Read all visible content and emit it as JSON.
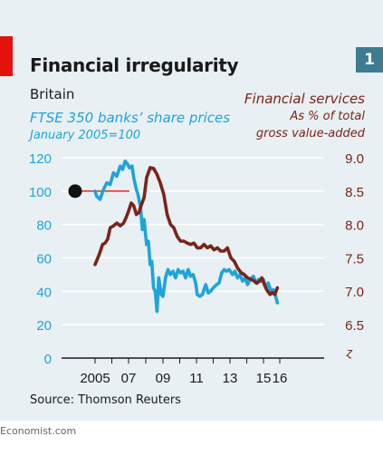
{
  "header": {
    "chart_number": "1",
    "title": "Financial irregularity",
    "subtitle": "Britain",
    "left_series_title": "FTSE 350 banks’ share prices",
    "left_series_subtitle": "January 2005=100",
    "right_series_title": "Financial services",
    "right_series_subtitle_1": "As % of total",
    "right_series_subtitle_2": "gross value-added"
  },
  "footer": {
    "source": "Source: Thomson Reuters",
    "credit": "Economist.com"
  },
  "colors": {
    "left_series": "#1fa3db",
    "right_series": "#7a2418",
    "highlight": "#e3120b",
    "background": "#e8f0f4"
  },
  "chart_data": {
    "type": "line",
    "x_tick_labels": [
      "2005",
      "07",
      "09",
      "11",
      "13",
      "15",
      "16"
    ],
    "x_ticks": [
      2005,
      2007,
      2009,
      2011,
      2013,
      2015,
      2016
    ],
    "xlim": [
      2004.2,
      2016.0
    ],
    "left_axis": {
      "ticks": [
        0,
        20,
        40,
        60,
        80,
        100,
        120
      ],
      "tick_labels": [
        "0",
        "20",
        "40",
        "60",
        "80",
        "100",
        "120"
      ],
      "ylim": [
        0,
        120
      ]
    },
    "right_axis": {
      "ticks": [
        6.5,
        7.0,
        7.5,
        8.0,
        8.5,
        9.0
      ],
      "tick_labels": [
        "6.5",
        "7.0",
        "7.5",
        "8.0",
        "8.5",
        "9.0"
      ],
      "ylim": [
        6.0,
        9.0
      ],
      "axis_break": true
    },
    "reference": {
      "y": 100,
      "x_start": 2004.3,
      "x_end": 2005.3,
      "marker_x": 2004.3
    },
    "series": [
      {
        "axis": "left",
        "points": [
          [
            2005.0,
            100
          ],
          [
            2005.1,
            97
          ],
          [
            2005.3,
            95
          ],
          [
            2005.5,
            101
          ],
          [
            2005.7,
            105
          ],
          [
            2005.9,
            104
          ],
          [
            2006.1,
            111
          ],
          [
            2006.3,
            109
          ],
          [
            2006.5,
            115
          ],
          [
            2006.65,
            113
          ],
          [
            2006.8,
            118
          ],
          [
            2006.95,
            116
          ],
          [
            2007.05,
            114
          ],
          [
            2007.2,
            115
          ],
          [
            2007.3,
            108
          ],
          [
            2007.45,
            101
          ],
          [
            2007.55,
            98
          ],
          [
            2007.7,
            90
          ],
          [
            2007.8,
            77
          ],
          [
            2007.9,
            83
          ],
          [
            2008.05,
            68
          ],
          [
            2008.15,
            70
          ],
          [
            2008.25,
            56
          ],
          [
            2008.35,
            58
          ],
          [
            2008.45,
            42
          ],
          [
            2008.55,
            40
          ],
          [
            2008.65,
            28
          ],
          [
            2008.75,
            48
          ],
          [
            2008.9,
            38
          ],
          [
            2009.0,
            37
          ],
          [
            2009.15,
            48
          ],
          [
            2009.3,
            53
          ],
          [
            2009.45,
            50
          ],
          [
            2009.6,
            52
          ],
          [
            2009.75,
            48
          ],
          [
            2009.9,
            53
          ],
          [
            2010.05,
            51
          ],
          [
            2010.2,
            52
          ],
          [
            2010.35,
            48
          ],
          [
            2010.5,
            53
          ],
          [
            2010.65,
            49
          ],
          [
            2010.8,
            50
          ],
          [
            2010.95,
            45
          ],
          [
            2011.05,
            38
          ],
          [
            2011.2,
            37
          ],
          [
            2011.35,
            38
          ],
          [
            2011.55,
            44
          ],
          [
            2011.7,
            39
          ],
          [
            2011.85,
            40
          ],
          [
            2012.0,
            42
          ],
          [
            2012.2,
            44
          ],
          [
            2012.35,
            45
          ],
          [
            2012.5,
            51
          ],
          [
            2012.65,
            53
          ],
          [
            2012.8,
            52
          ],
          [
            2012.95,
            53
          ],
          [
            2013.15,
            50
          ],
          [
            2013.3,
            52
          ],
          [
            2013.45,
            48
          ],
          [
            2013.6,
            50
          ],
          [
            2013.75,
            46
          ],
          [
            2013.9,
            48
          ],
          [
            2014.05,
            44
          ],
          [
            2014.2,
            47
          ],
          [
            2014.4,
            49
          ],
          [
            2014.55,
            45
          ],
          [
            2014.7,
            47
          ],
          [
            2014.85,
            46
          ],
          [
            2015.0,
            47
          ],
          [
            2015.15,
            42
          ],
          [
            2015.3,
            45
          ],
          [
            2015.45,
            40
          ],
          [
            2015.6,
            41
          ],
          [
            2015.75,
            37
          ],
          [
            2015.85,
            33
          ]
        ]
      },
      {
        "axis": "right",
        "points": [
          [
            2005.0,
            7.4
          ],
          [
            2005.25,
            7.55
          ],
          [
            2005.45,
            7.7
          ],
          [
            2005.6,
            7.72
          ],
          [
            2005.75,
            7.78
          ],
          [
            2005.9,
            7.95
          ],
          [
            2006.1,
            7.98
          ],
          [
            2006.3,
            8.02
          ],
          [
            2006.5,
            7.98
          ],
          [
            2006.7,
            8.02
          ],
          [
            2006.85,
            8.1
          ],
          [
            2007.0,
            8.2
          ],
          [
            2007.15,
            8.32
          ],
          [
            2007.3,
            8.28
          ],
          [
            2007.45,
            8.15
          ],
          [
            2007.6,
            8.18
          ],
          [
            2007.75,
            8.3
          ],
          [
            2007.9,
            8.4
          ],
          [
            2008.05,
            8.7
          ],
          [
            2008.25,
            8.85
          ],
          [
            2008.45,
            8.84
          ],
          [
            2008.65,
            8.75
          ],
          [
            2008.85,
            8.62
          ],
          [
            2009.05,
            8.45
          ],
          [
            2009.25,
            8.15
          ],
          [
            2009.45,
            8.0
          ],
          [
            2009.65,
            7.95
          ],
          [
            2009.85,
            7.82
          ],
          [
            2010.05,
            7.75
          ],
          [
            2010.25,
            7.75
          ],
          [
            2010.45,
            7.72
          ],
          [
            2010.65,
            7.7
          ],
          [
            2010.85,
            7.72
          ],
          [
            2011.05,
            7.65
          ],
          [
            2011.25,
            7.65
          ],
          [
            2011.45,
            7.7
          ],
          [
            2011.65,
            7.65
          ],
          [
            2011.85,
            7.68
          ],
          [
            2012.05,
            7.62
          ],
          [
            2012.25,
            7.65
          ],
          [
            2012.45,
            7.6
          ],
          [
            2012.65,
            7.6
          ],
          [
            2012.85,
            7.65
          ],
          [
            2013.05,
            7.5
          ],
          [
            2013.25,
            7.45
          ],
          [
            2013.45,
            7.35
          ],
          [
            2013.65,
            7.28
          ],
          [
            2013.85,
            7.25
          ],
          [
            2014.05,
            7.2
          ],
          [
            2014.25,
            7.18
          ],
          [
            2014.45,
            7.15
          ],
          [
            2014.6,
            7.12
          ],
          [
            2014.75,
            7.15
          ],
          [
            2014.9,
            7.2
          ],
          [
            2015.05,
            7.1
          ],
          [
            2015.2,
            7.02
          ],
          [
            2015.4,
            6.95
          ],
          [
            2015.55,
            6.98
          ],
          [
            2015.7,
            6.95
          ],
          [
            2015.85,
            7.05
          ]
        ]
      }
    ]
  }
}
